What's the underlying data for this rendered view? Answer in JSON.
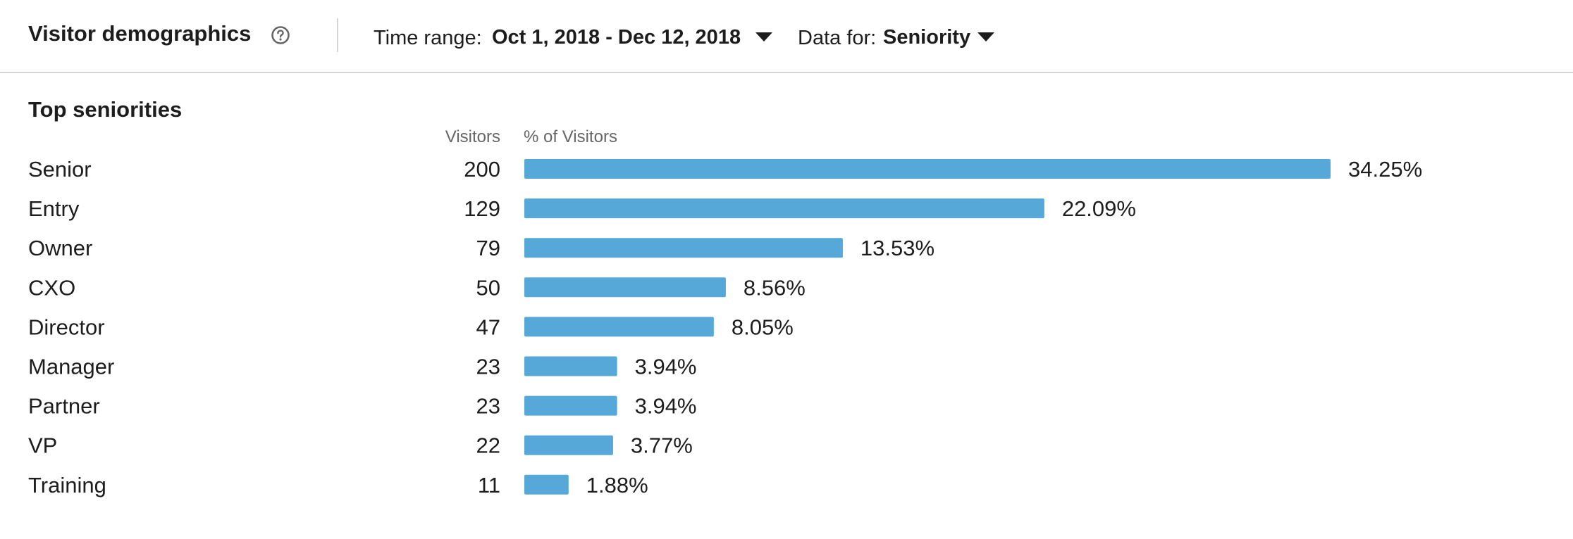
{
  "header": {
    "title": "Visitor demographics",
    "help_icon": "question-circle-icon",
    "time_range_label": "Time range:",
    "time_range_value": "Oct 1, 2018 - Dec 12, 2018",
    "data_for_label": "Data for:",
    "data_for_value": "Seniority",
    "caret_icon": "caret-down-icon"
  },
  "section": {
    "title": "Top seniorities",
    "col_visitors": "Visitors",
    "col_percent": "% of Visitors"
  },
  "colors": {
    "bar": "#55a8d8",
    "text": "#1d1d1d",
    "muted": "#666666",
    "divider": "#d6d6d6"
  },
  "chart_data": {
    "type": "bar",
    "orientation": "horizontal",
    "categories": [
      "Senior",
      "Entry",
      "Owner",
      "CXO",
      "Director",
      "Manager",
      "Partner",
      "VP",
      "Training"
    ],
    "visitors": [
      200,
      129,
      79,
      50,
      47,
      23,
      23,
      22,
      11
    ],
    "values": [
      34.25,
      22.09,
      13.53,
      8.56,
      8.05,
      3.94,
      3.94,
      3.77,
      1.88
    ],
    "value_labels": [
      "34.25%",
      "22.09%",
      "13.53%",
      "8.56%",
      "8.05%",
      "3.94%",
      "3.94%",
      "3.77%",
      "1.88%"
    ],
    "grid": false
  }
}
